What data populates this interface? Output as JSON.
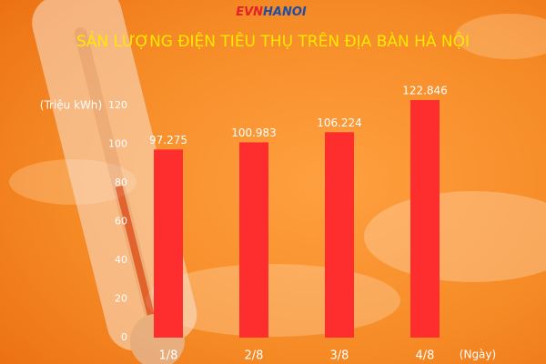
{
  "logo_text": [
    "EVN",
    "HANOI"
  ],
  "chart_data": {
    "type": "bar",
    "title": "SẢN LƯỢNG ĐIỆN TIÊU THỤ TRÊN ĐỊA BÀN HÀ NỘI",
    "y_label": "(Triệu kWh)",
    "x_label": "(Ngày)",
    "categories": [
      "1/8",
      "2/8",
      "3/8",
      "4/8"
    ],
    "values": [
      97.275,
      100.983,
      106.224,
      122.846
    ],
    "color": "#ff2e2e",
    "ylim": [
      0,
      120
    ],
    "yticks": [
      0,
      20,
      40,
      60,
      80,
      100,
      120
    ],
    "grid": false
  }
}
